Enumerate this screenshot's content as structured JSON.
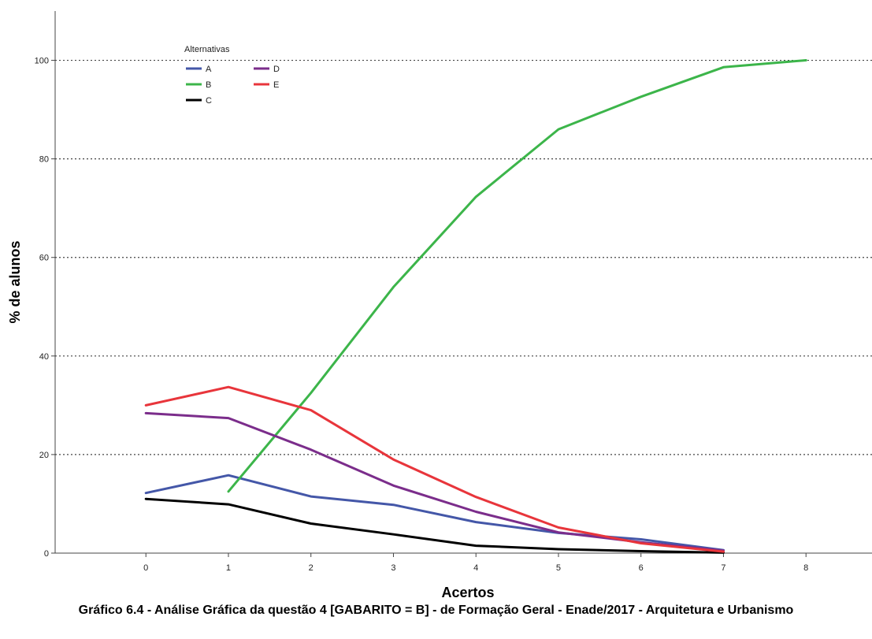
{
  "chart_data": {
    "type": "line",
    "xlabel": "Acertos",
    "ylabel": "% de alunos",
    "caption": "Gráfico 6.4 - Análise Gráfica da questão 4 [GABARITO = B] - de Formação Geral - Enade/2017 - Arquitetura e Urbanismo",
    "xlim": [
      -1.1,
      8.8
    ],
    "ylim": [
      0,
      110
    ],
    "xticks": [
      0,
      1,
      2,
      3,
      4,
      5,
      6,
      7,
      8
    ],
    "yticks": [
      0,
      20,
      40,
      60,
      80,
      100
    ],
    "grid": "horizontal dotted",
    "legend": {
      "title": "Alternativas",
      "placement": "top-left"
    },
    "series": [
      {
        "name": "A",
        "color": "#4457a8",
        "x": [
          0,
          1,
          2,
          3,
          4,
          5,
          6,
          7
        ],
        "y": [
          12.2,
          15.8,
          11.5,
          9.8,
          6.3,
          4.1,
          2.8,
          0.6
        ]
      },
      {
        "name": "B",
        "color": "#3cb54a",
        "x": [
          1,
          2,
          3,
          4,
          5,
          6,
          7,
          8
        ],
        "y": [
          12.5,
          32.5,
          54,
          72.3,
          86,
          92.6,
          98.6,
          100
        ]
      },
      {
        "name": "C",
        "color": "#000000",
        "x": [
          0,
          1,
          2,
          3,
          4,
          5,
          6,
          7
        ],
        "y": [
          11,
          9.9,
          6,
          3.8,
          1.5,
          0.8,
          0.4,
          0.1
        ]
      },
      {
        "name": "D",
        "color": "#7b2d8b",
        "x": [
          0,
          1,
          2,
          3,
          4,
          5,
          6,
          7
        ],
        "y": [
          28.4,
          27.4,
          21,
          13.7,
          8.4,
          4.2,
          2.2,
          0.5
        ]
      },
      {
        "name": "E",
        "color": "#e8353b",
        "x": [
          0,
          1,
          2,
          3,
          4,
          5,
          6,
          7
        ],
        "y": [
          30,
          33.7,
          29,
          19,
          11.4,
          5.2,
          2,
          0.3
        ]
      }
    ]
  }
}
